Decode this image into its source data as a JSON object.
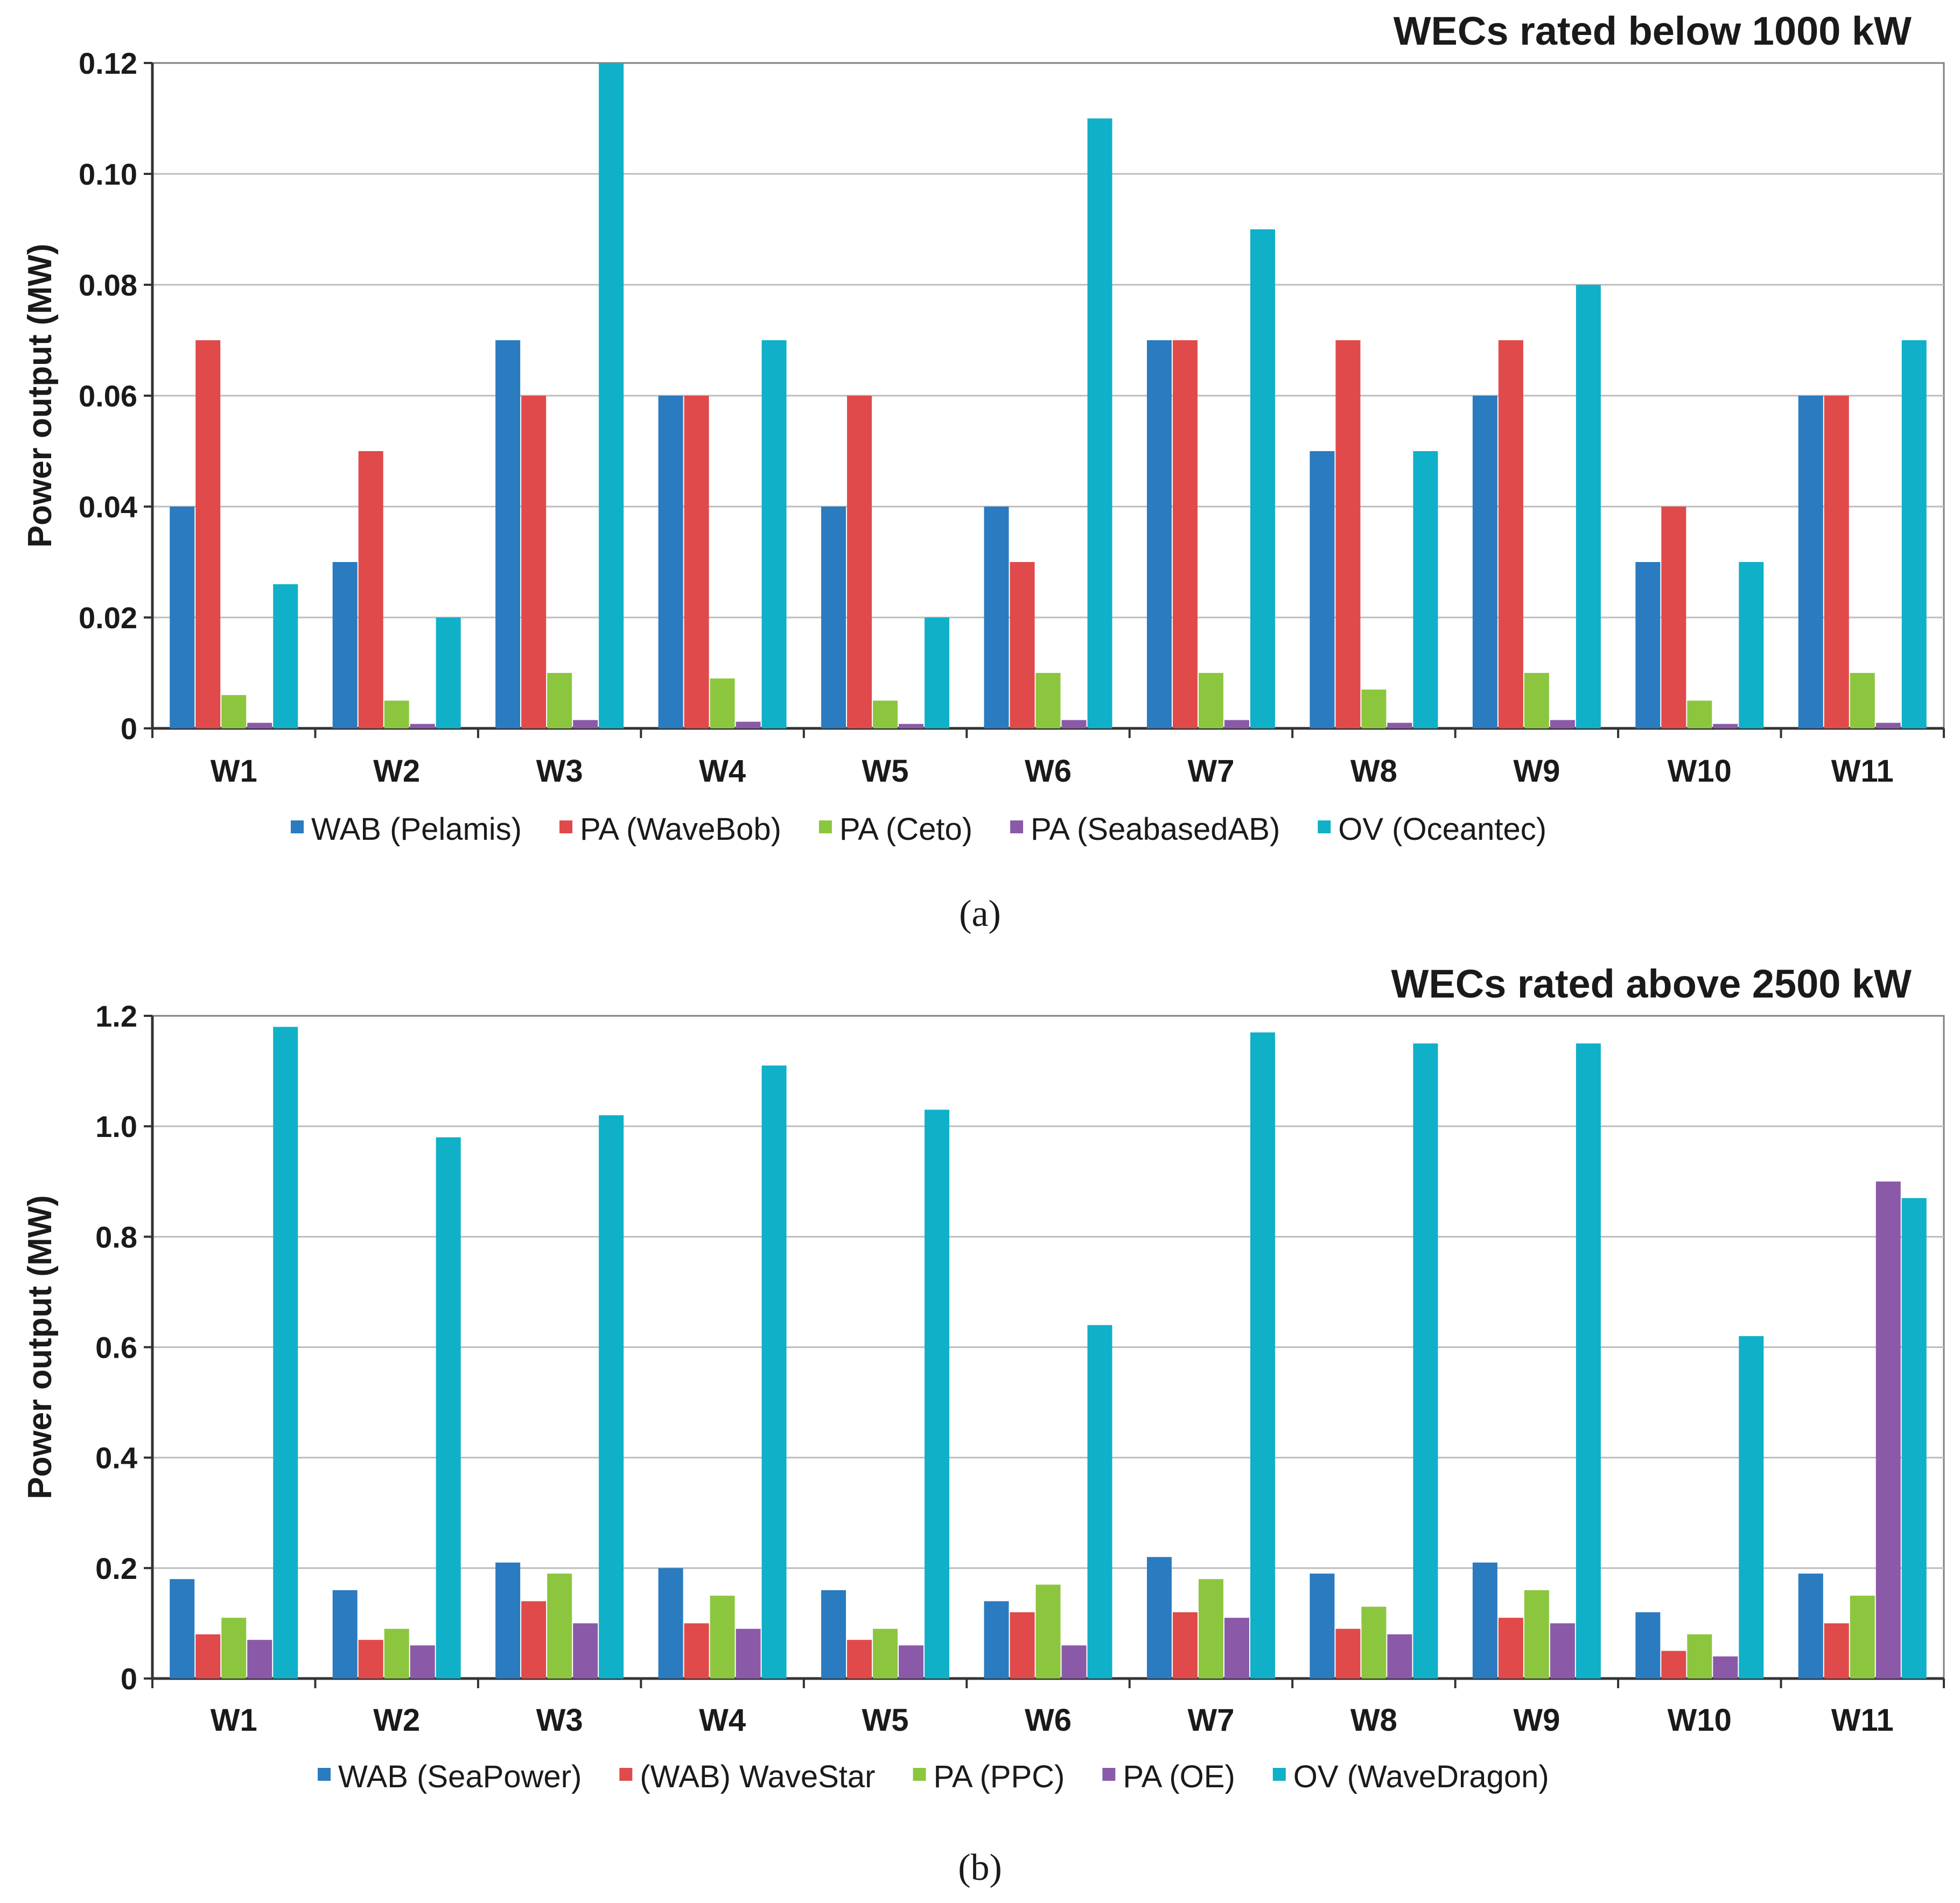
{
  "chart_data": [
    {
      "type": "bar",
      "caption": "(a)",
      "title": "WECs rated below 1000 kW",
      "ylabel": "Power output (MW)",
      "xlabel": "",
      "ylim": [
        0,
        0.12
      ],
      "yticks": [
        "0",
        "0.02",
        "0.04",
        "0.06",
        "0.08",
        "0.10",
        "0.12"
      ],
      "grid": true,
      "legend_position": "bottom",
      "categories": [
        "W1",
        "W2",
        "W3",
        "W4",
        "W5",
        "W6",
        "W7",
        "W8",
        "W9",
        "W10",
        "W11"
      ],
      "series": [
        {
          "name": "WAB (Pelamis)",
          "color": "#2a7bbf",
          "values": [
            0.04,
            0.03,
            0.07,
            0.06,
            0.04,
            0.04,
            0.07,
            0.05,
            0.06,
            0.03,
            0.06
          ]
        },
        {
          "name": "PA (WaveBob)",
          "color": "#e04a4a",
          "values": [
            0.07,
            0.05,
            0.06,
            0.06,
            0.06,
            0.03,
            0.07,
            0.07,
            0.07,
            0.04,
            0.06
          ]
        },
        {
          "name": "PA (Ceto)",
          "color": "#8cc63f",
          "values": [
            0.006,
            0.005,
            0.01,
            0.009,
            0.005,
            0.01,
            0.01,
            0.007,
            0.01,
            0.005,
            0.01
          ]
        },
        {
          "name": "PA (SeabasedAB)",
          "color": "#8a5aa8",
          "values": [
            0.001,
            0.0008,
            0.0015,
            0.0012,
            0.0008,
            0.0015,
            0.0015,
            0.001,
            0.0015,
            0.0008,
            0.001
          ]
        },
        {
          "name": "OV (Oceantec)",
          "color": "#0fb0c8",
          "values": [
            0.026,
            0.02,
            0.12,
            0.07,
            0.02,
            0.11,
            0.09,
            0.05,
            0.08,
            0.03,
            0.07
          ]
        }
      ]
    },
    {
      "type": "bar",
      "caption": "(b)",
      "title": "WECs rated above 2500 kW",
      "ylabel": "Power output (MW)",
      "xlabel": "",
      "ylim": [
        0,
        1.2
      ],
      "yticks": [
        "0",
        "0.2",
        "0.4",
        "0.6",
        "0.8",
        "1.0",
        "1.2"
      ],
      "grid": true,
      "legend_position": "bottom",
      "categories": [
        "W1",
        "W2",
        "W3",
        "W4",
        "W5",
        "W6",
        "W7",
        "W8",
        "W9",
        "W10",
        "W11"
      ],
      "series": [
        {
          "name": "WAB (SeaPower)",
          "color": "#2a7bbf",
          "values": [
            0.18,
            0.16,
            0.21,
            0.2,
            0.16,
            0.14,
            0.22,
            0.19,
            0.21,
            0.12,
            0.19
          ]
        },
        {
          "name": "(WAB) WaveStar",
          "color": "#e04a4a",
          "values": [
            0.08,
            0.07,
            0.14,
            0.1,
            0.07,
            0.12,
            0.12,
            0.09,
            0.11,
            0.05,
            0.1
          ]
        },
        {
          "name": "PA (PPC)",
          "color": "#8cc63f",
          "values": [
            0.11,
            0.09,
            0.19,
            0.15,
            0.09,
            0.17,
            0.18,
            0.13,
            0.16,
            0.08,
            0.15
          ]
        },
        {
          "name": "PA (OE)",
          "color": "#8a5aa8",
          "values": [
            0.07,
            0.06,
            0.1,
            0.09,
            0.06,
            0.06,
            0.11,
            0.08,
            0.1,
            0.04,
            0.9
          ]
        },
        {
          "name": "OV (WaveDragon)",
          "color": "#0fb0c8",
          "values": [
            1.18,
            0.98,
            1.02,
            1.11,
            1.03,
            0.64,
            1.17,
            1.15,
            1.15,
            0.62,
            0.87
          ]
        }
      ]
    }
  ]
}
